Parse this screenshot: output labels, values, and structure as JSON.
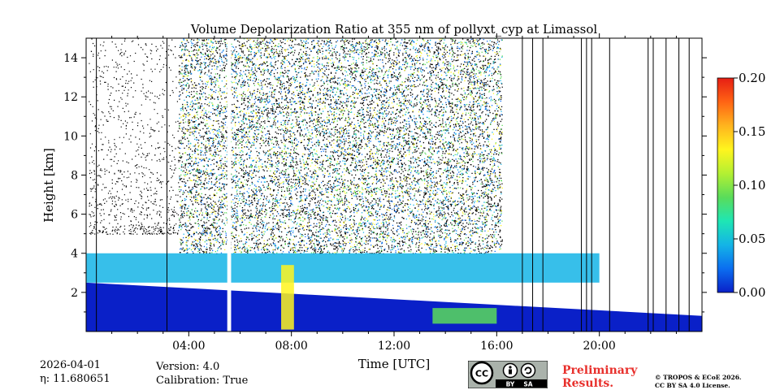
{
  "chart_data": {
    "type": "heatmap",
    "title": "Volume Depolarization Ratio at 355 nm of pollyxt_cyp at Limassol",
    "xlabel": "Time [UTC]",
    "ylabel": "Height [km]",
    "xlim_hours": [
      0,
      24
    ],
    "ylim_km": [
      0,
      15
    ],
    "x_ticks": [
      {
        "value": 4,
        "label": "04:00"
      },
      {
        "value": 8,
        "label": "08:00"
      },
      {
        "value": 12,
        "label": "12:00"
      },
      {
        "value": 16,
        "label": "16:00"
      },
      {
        "value": 20,
        "label": "20:00"
      }
    ],
    "y_ticks": [
      {
        "value": 2,
        "label": "2"
      },
      {
        "value": 4,
        "label": "4"
      },
      {
        "value": 6,
        "label": "6"
      },
      {
        "value": 8,
        "label": "8"
      },
      {
        "value": 10,
        "label": "10"
      },
      {
        "value": 12,
        "label": "12"
      },
      {
        "value": 14,
        "label": "14"
      }
    ],
    "colorbar": {
      "range": [
        0.0,
        0.2
      ],
      "ticks": [
        {
          "value": 0.0,
          "label": "0.00"
        },
        {
          "value": 0.05,
          "label": "0.05"
        },
        {
          "value": 0.1,
          "label": "0.10"
        },
        {
          "value": 0.15,
          "label": "0.15"
        },
        {
          "value": 0.2,
          "label": "0.20"
        }
      ],
      "colormap": [
        "#0a20c8",
        "#0b6ef0",
        "#14b4e6",
        "#1ee6b4",
        "#5adc5a",
        "#b4f032",
        "#fff51e",
        "#ffb41e",
        "#ff6414",
        "#e61e14"
      ]
    },
    "layers": [
      {
        "name": "boundary layer",
        "t_start": 0,
        "t_end": 24,
        "top_km_start": 2.5,
        "top_km_end": 0.8,
        "depol": 0.01
      },
      {
        "name": "aerosol layer",
        "t_start": 0,
        "t_end": 20,
        "base_km": 2.5,
        "top_km": 4.0,
        "depol": 0.05
      },
      {
        "name": "dust near surface",
        "t_start": 13.5,
        "t_end": 16.0,
        "base_km": 0.4,
        "top_km": 1.2,
        "depol": 0.09
      },
      {
        "name": "cloud",
        "t_start": 7.6,
        "t_end": 8.1,
        "base_km": 0.1,
        "top_km": 3.4,
        "depol": 0.13
      }
    ],
    "noise_region_hours": [
      3.6,
      16.2
    ],
    "data_gaps_hours": [
      5.5,
      5.65
    ],
    "cloud_lines_hours": [
      0.4,
      3.15,
      17.0,
      17.4,
      17.8,
      19.3,
      19.5,
      19.7,
      20.4,
      21.9,
      22.1,
      22.6,
      23.1,
      23.5
    ]
  },
  "footer": {
    "date": "2026-04-01",
    "eta_label": "η: 11.680651",
    "version": "Version: 4.0",
    "calibration": "Calibration: True",
    "preliminary_line1": "Preliminary",
    "preliminary_line2": "Results.",
    "copyright_line1": "© TROPOS & ECoE 2026.",
    "copyright_line2": "CC BY SA 4.0 License.",
    "license_badge": {
      "cc": "CC",
      "by": "BY",
      "sa": "SA"
    }
  }
}
